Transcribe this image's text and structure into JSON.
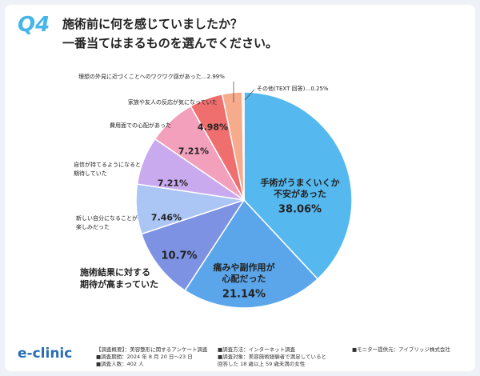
{
  "chart_data": {
    "type": "pie",
    "question": "Q4",
    "title": "施術前に何を感じていましたか？\n一番当てはまるものを選んでください。",
    "categories": [
      "手術がうまくいくか\n不安があった",
      "痛みや副作用が\n心配だった",
      "施術結果に対する\n期待が高まっていた",
      "新しい自分になることが\n楽しみだった",
      "自信が持てるようになると\n期待していた",
      "費用面での心配があった",
      "家族や友人の反応が気になっていた",
      "理想の外見に近づくことへのワクワク感があった",
      "その他(TEXT 回答)"
    ],
    "values": [
      38.06,
      21.14,
      10.7,
      7.46,
      7.21,
      7.21,
      4.98,
      2.99,
      0.25
    ],
    "value_labels": [
      "38.06%",
      "21.14%",
      "10.7%",
      "7.46%",
      "7.21%",
      "7.21%",
      "4.98%",
      "…2.99%",
      "…0.25%"
    ],
    "colors": [
      "#55b8ef",
      "#5ba6ea",
      "#7d92e2",
      "#abc5f5",
      "#c9aaef",
      "#f3a0bd",
      "#ef6e6e",
      "#f6ab8c",
      "#e9d6c4"
    ]
  },
  "footer": {
    "logo": "e-clinic",
    "notes": [
      "【調査概要】：美容整形に関するアンケート調査",
      "■調査期間：2024 年 8 月 20 日～23 日",
      "■調査人数：402 人",
      "■調査方法：インターネット調査",
      "■調査対象：美容施術経験者で満足していると\n回答した 18 歳以上 59 歳未満の女性",
      "■モニター提供元：アイブリッジ株式会社"
    ]
  }
}
